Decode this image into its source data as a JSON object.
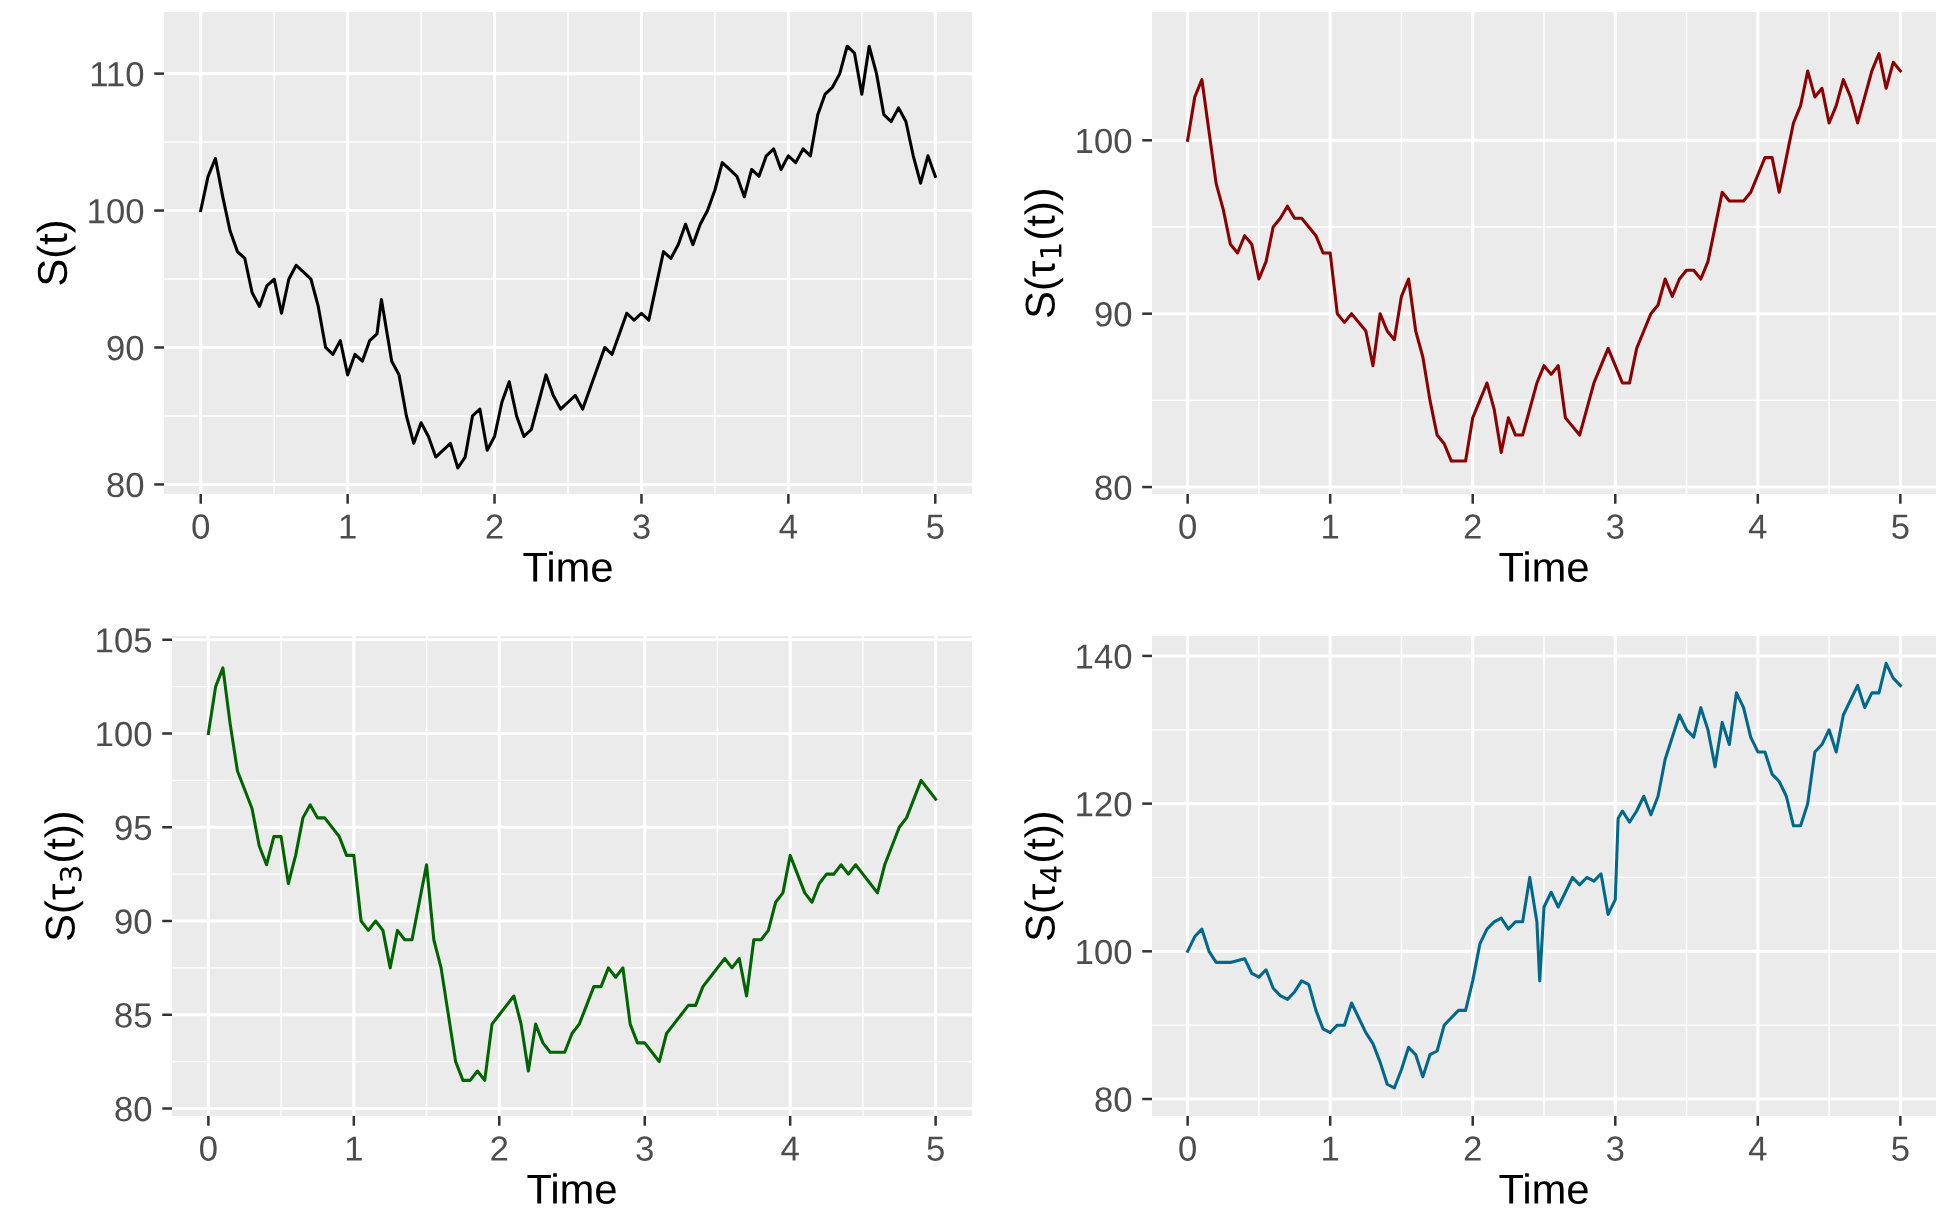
{
  "chart_data": [
    {
      "type": "line",
      "xlabel": "Time",
      "ylabel": "S(t)",
      "xlim": [
        -0.25,
        5.25
      ],
      "ylim": [
        79.3,
        114.5
      ],
      "xticks": [
        0,
        1,
        2,
        3,
        4,
        5
      ],
      "yticks": [
        80,
        90,
        100,
        110
      ],
      "grid": true,
      "x": [
        0,
        0.05,
        0.1,
        0.15,
        0.2,
        0.25,
        0.3,
        0.35,
        0.4,
        0.45,
        0.5,
        0.55,
        0.6,
        0.65,
        0.7,
        0.75,
        0.8,
        0.85,
        0.9,
        0.95,
        1.0,
        1.05,
        1.1,
        1.15,
        1.2,
        1.23,
        1.3,
        1.35,
        1.4,
        1.45,
        1.5,
        1.55,
        1.6,
        1.65,
        1.7,
        1.75,
        1.8,
        1.85,
        1.9,
        1.95,
        2.0,
        2.05,
        2.1,
        2.15,
        2.2,
        2.25,
        2.3,
        2.35,
        2.4,
        2.45,
        2.5,
        2.55,
        2.6,
        2.65,
        2.7,
        2.75,
        2.8,
        2.85,
        2.9,
        2.95,
        3.0,
        3.05,
        3.1,
        3.15,
        3.2,
        3.25,
        3.3,
        3.35,
        3.4,
        3.45,
        3.5,
        3.55,
        3.6,
        3.65,
        3.7,
        3.75,
        3.8,
        3.85,
        3.9,
        3.95,
        4.0,
        4.05,
        4.1,
        4.15,
        4.2,
        4.25,
        4.3,
        4.35,
        4.4,
        4.45,
        4.5,
        4.55,
        4.6,
        4.65,
        4.7,
        4.75,
        4.8,
        4.85,
        4.9,
        4.95,
        5.0
      ],
      "series": [
        {
          "color": "#000000",
          "values": [
            100,
            102.5,
            103.8,
            101,
            98.5,
            97,
            96.5,
            94,
            93,
            94.5,
            95,
            92.5,
            95,
            96,
            95.5,
            95,
            93,
            90,
            89.5,
            90.5,
            88,
            89.5,
            89,
            90.5,
            91,
            93.5,
            89,
            88,
            85,
            83,
            84.5,
            83.5,
            82,
            82.5,
            83,
            81.2,
            82,
            85,
            85.5,
            82.5,
            83.5,
            86,
            87.5,
            85,
            83.5,
            84,
            86,
            88,
            86.5,
            85.5,
            86,
            86.5,
            85.5,
            87,
            88.5,
            90,
            89.5,
            91,
            92.5,
            92,
            92.5,
            92,
            94.5,
            97,
            96.5,
            97.5,
            99,
            97.5,
            99,
            100,
            101.5,
            103.5,
            103,
            102.5,
            101,
            103,
            102.5,
            104,
            104.5,
            103,
            104,
            103.5,
            104.5,
            104,
            107,
            108.5,
            109,
            110,
            112,
            111.5,
            108.5,
            112,
            110,
            107,
            106.5,
            107.5,
            106.5,
            104,
            102,
            104,
            102.5
          ]
        }
      ]
    },
    {
      "type": "line",
      "xlabel": "Time",
      "ylabel": "S(τ$_{1}$(t))",
      "xlim": [
        -0.25,
        5.25
      ],
      "ylim": [
        79.6,
        107.4
      ],
      "xticks": [
        0,
        1,
        2,
        3,
        4,
        5
      ],
      "yticks": [
        80,
        90,
        100
      ],
      "grid": true,
      "x": [
        0,
        0.05,
        0.1,
        0.15,
        0.2,
        0.25,
        0.3,
        0.35,
        0.4,
        0.45,
        0.5,
        0.55,
        0.6,
        0.65,
        0.7,
        0.75,
        0.8,
        0.85,
        0.9,
        0.95,
        1.0,
        1.05,
        1.1,
        1.15,
        1.2,
        1.25,
        1.3,
        1.35,
        1.4,
        1.45,
        1.5,
        1.55,
        1.6,
        1.65,
        1.7,
        1.75,
        1.8,
        1.85,
        1.9,
        1.95,
        2.0,
        2.05,
        2.1,
        2.15,
        2.2,
        2.25,
        2.3,
        2.35,
        2.4,
        2.45,
        2.5,
        2.55,
        2.6,
        2.65,
        2.7,
        2.75,
        2.8,
        2.85,
        2.9,
        2.95,
        3.0,
        3.05,
        3.1,
        3.15,
        3.2,
        3.25,
        3.3,
        3.35,
        3.4,
        3.45,
        3.5,
        3.55,
        3.6,
        3.65,
        3.7,
        3.75,
        3.8,
        3.85,
        3.9,
        3.95,
        4.0,
        4.05,
        4.1,
        4.15,
        4.2,
        4.25,
        4.3,
        4.35,
        4.4,
        4.45,
        4.5,
        4.55,
        4.6,
        4.65,
        4.7,
        4.75,
        4.8,
        4.85,
        4.9,
        4.95,
        5.0
      ],
      "series": [
        {
          "color": "#8b0000",
          "values": [
            100,
            102.5,
            103.5,
            100.5,
            97.5,
            96,
            94,
            93.5,
            94.5,
            94,
            92,
            93,
            95,
            95.5,
            96.2,
            95.5,
            95.5,
            95,
            94.5,
            93.5,
            93.5,
            90,
            89.5,
            90,
            89.5,
            89,
            87,
            90,
            89,
            88.5,
            91,
            92,
            89,
            87.5,
            85,
            83,
            82.5,
            81.5,
            81.5,
            81.5,
            84,
            85,
            86,
            84.5,
            82,
            84,
            83,
            83,
            84.5,
            86,
            87,
            86.5,
            87,
            84,
            83.5,
            83,
            84.5,
            86,
            87,
            88,
            87,
            86,
            86,
            88,
            89,
            90,
            90.5,
            92,
            91,
            92,
            92.5,
            92.5,
            92,
            93,
            95,
            97,
            96.5,
            96.5,
            96.5,
            97,
            98,
            99,
            99,
            97,
            99,
            101,
            102,
            104,
            102.5,
            103,
            101,
            102,
            103.5,
            102.5,
            101,
            102.5,
            104,
            105,
            103,
            104.5,
            104
          ]
        }
      ]
    },
    {
      "type": "line",
      "xlabel": "Time",
      "ylabel": "S(τ$_{3}$(t))",
      "xlim": [
        -0.25,
        5.25
      ],
      "ylim": [
        79.6,
        105.2
      ],
      "xticks": [
        0,
        1,
        2,
        3,
        4,
        5
      ],
      "yticks": [
        80,
        85,
        90,
        95,
        100,
        105
      ],
      "grid": true,
      "x": [
        0,
        0.05,
        0.1,
        0.15,
        0.2,
        0.25,
        0.3,
        0.35,
        0.4,
        0.45,
        0.5,
        0.55,
        0.6,
        0.65,
        0.7,
        0.75,
        0.8,
        0.85,
        0.9,
        0.95,
        1.0,
        1.05,
        1.1,
        1.15,
        1.2,
        1.25,
        1.3,
        1.35,
        1.4,
        1.45,
        1.5,
        1.55,
        1.6,
        1.65,
        1.7,
        1.75,
        1.8,
        1.85,
        1.9,
        1.95,
        2.0,
        2.05,
        2.1,
        2.15,
        2.2,
        2.25,
        2.3,
        2.35,
        2.4,
        2.45,
        2.5,
        2.55,
        2.6,
        2.65,
        2.7,
        2.75,
        2.8,
        2.85,
        2.9,
        2.95,
        3.0,
        3.05,
        3.1,
        3.15,
        3.2,
        3.25,
        3.3,
        3.35,
        3.4,
        3.45,
        3.5,
        3.55,
        3.6,
        3.65,
        3.7,
        3.75,
        3.8,
        3.85,
        3.9,
        3.95,
        4.0,
        4.05,
        4.1,
        4.15,
        4.2,
        4.25,
        4.3,
        4.35,
        4.4,
        4.45,
        4.5,
        4.55,
        4.6,
        4.65,
        4.7,
        4.75,
        4.8,
        4.85,
        4.9,
        4.95,
        5.0
      ],
      "series": [
        {
          "color": "#006400",
          "values": [
            100,
            102.5,
            103.5,
            100.5,
            98,
            97,
            96,
            94,
            93,
            94.5,
            94.5,
            92,
            93.5,
            95.5,
            96.2,
            95.5,
            95.5,
            95,
            94.5,
            93.5,
            93.5,
            90,
            89.5,
            90,
            89.5,
            87.5,
            89.5,
            89,
            89,
            91,
            93,
            89,
            87.5,
            85,
            82.5,
            81.5,
            81.5,
            82,
            81.5,
            84.5,
            85,
            85.5,
            86,
            84.5,
            82,
            84.5,
            83.5,
            83,
            83,
            83,
            84,
            84.5,
            85.5,
            86.5,
            86.5,
            87.5,
            87,
            87.5,
            84.5,
            83.5,
            83.5,
            83,
            82.5,
            84,
            84.5,
            85,
            85.5,
            85.5,
            86.5,
            87,
            87.5,
            88,
            87.5,
            88,
            86,
            89,
            89,
            89.5,
            91,
            91.5,
            93.5,
            92.5,
            91.5,
            91,
            92,
            92.5,
            92.5,
            93,
            92.5,
            93,
            92.5,
            92,
            91.5,
            93,
            94,
            95,
            95.5,
            96.5,
            97.5,
            97,
            96.5
          ]
        }
      ]
    },
    {
      "type": "line",
      "xlabel": "Time",
      "ylabel": "S(τ$_{4}$(t))",
      "xlim": [
        -0.25,
        5.25
      ],
      "ylim": [
        77.7,
        142.7
      ],
      "xticks": [
        0,
        1,
        2,
        3,
        4,
        5
      ],
      "yticks": [
        80,
        100,
        120,
        140
      ],
      "grid": true,
      "x": [
        0,
        0.05,
        0.1,
        0.15,
        0.2,
        0.3,
        0.4,
        0.45,
        0.5,
        0.55,
        0.6,
        0.65,
        0.7,
        0.75,
        0.8,
        0.85,
        0.9,
        0.95,
        1.0,
        1.05,
        1.1,
        1.15,
        1.2,
        1.25,
        1.3,
        1.35,
        1.4,
        1.45,
        1.5,
        1.55,
        1.6,
        1.65,
        1.7,
        1.75,
        1.8,
        1.85,
        1.9,
        1.95,
        2.0,
        2.05,
        2.1,
        2.15,
        2.2,
        2.25,
        2.3,
        2.35,
        2.4,
        2.45,
        2.47,
        2.5,
        2.55,
        2.6,
        2.65,
        2.7,
        2.75,
        2.8,
        2.85,
        2.9,
        2.95,
        3.0,
        3.02,
        3.05,
        3.1,
        3.15,
        3.2,
        3.25,
        3.3,
        3.35,
        3.4,
        3.45,
        3.5,
        3.55,
        3.6,
        3.65,
        3.7,
        3.75,
        3.8,
        3.85,
        3.9,
        3.95,
        4.0,
        4.05,
        4.1,
        4.15,
        4.2,
        4.25,
        4.3,
        4.35,
        4.4,
        4.45,
        4.5,
        4.55,
        4.6,
        4.65,
        4.7,
        4.75,
        4.8,
        4.85,
        4.9,
        4.95,
        5.0
      ],
      "series": [
        {
          "color": "#00688b",
          "values": [
            100,
            102,
            103,
            100,
            98.5,
            98.5,
            99,
            97,
            96.5,
            97.5,
            95,
            94,
            93.5,
            94.5,
            96,
            95.5,
            92,
            89.5,
            89,
            90,
            90,
            93,
            91,
            89,
            87.5,
            85,
            82,
            81.5,
            84,
            87,
            86,
            83,
            86,
            86.5,
            90,
            91,
            92,
            92,
            96,
            101,
            103,
            104,
            104.5,
            103,
            104,
            104,
            110,
            104,
            96,
            106,
            108,
            106,
            108,
            110,
            109,
            110,
            109.5,
            110.5,
            105,
            107,
            118,
            119,
            117.5,
            119,
            121,
            118.5,
            121,
            126,
            129,
            132,
            130,
            129,
            133,
            130,
            125,
            131,
            128,
            135,
            133,
            129,
            127,
            127,
            124,
            123,
            121,
            117,
            117,
            120,
            127,
            128,
            130,
            127,
            132,
            134,
            136,
            133,
            135,
            135,
            139,
            137,
            136
          ]
        }
      ]
    }
  ]
}
